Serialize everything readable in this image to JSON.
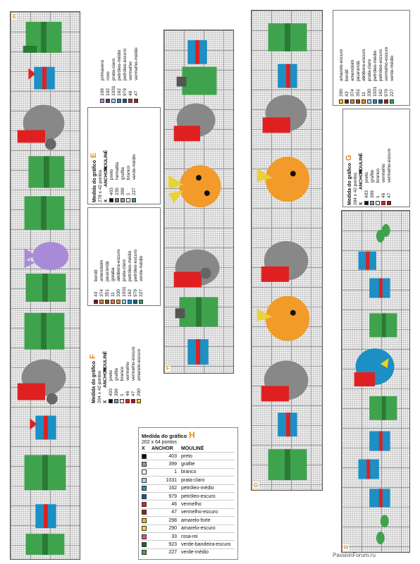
{
  "charts": {
    "E": {
      "letter": "E",
      "title": "Medida do gráfico",
      "size": "278 x 42 pontos",
      "header": {
        "x": "X",
        "anchor": "ANCHOR",
        "mouline": "MOULINÉ"
      },
      "rows": [
        {
          "anchor": "403",
          "name": "preto",
          "color": "#111111"
        },
        {
          "anchor": "235",
          "name": "hematita",
          "color": "#777777"
        },
        {
          "anchor": "399",
          "name": "grafite",
          "color": "#999999"
        },
        {
          "anchor": "1",
          "name": "branco",
          "color": "#ffffff"
        },
        {
          "anchor": "227",
          "name": "verde-médio",
          "color": "#3fa34d"
        }
      ],
      "extra": [
        {
          "anchor": "109",
          "name": "primavera",
          "color": "#b48fd8"
        },
        {
          "anchor": "102",
          "name": "roxo",
          "color": "#6a2b8a"
        },
        {
          "anchor": "1031",
          "name": "prata-claro",
          "color": "#9fd6f0"
        },
        {
          "anchor": "162",
          "name": "petróleo-médio",
          "color": "#1c8fc4"
        },
        {
          "anchor": "979",
          "name": "petróleo-escuro",
          "color": "#135c8a"
        },
        {
          "anchor": "46",
          "name": "vermelho",
          "color": "#e02020"
        },
        {
          "anchor": "47",
          "name": "vermelho-médio",
          "color": "#c01818"
        }
      ]
    },
    "F": {
      "letter": "F",
      "title": "Medida do gráfico",
      "size": "204 x 42 pontos",
      "header": {
        "x": "X",
        "anchor": "ANCHOR",
        "mouline": "MOULINÉ"
      },
      "rows": [
        {
          "anchor": "403",
          "name": "preto",
          "color": "#111111"
        },
        {
          "anchor": "399",
          "name": "grafite",
          "color": "#999999"
        },
        {
          "anchor": "1",
          "name": "branco",
          "color": "#ffffff"
        },
        {
          "anchor": "46",
          "name": "vermelho",
          "color": "#e02020"
        },
        {
          "anchor": "47",
          "name": "vermelho-escuro",
          "color": "#b01515"
        },
        {
          "anchor": "290",
          "name": "amarelo-escuro",
          "color": "#f2d21a"
        }
      ],
      "extra": [
        {
          "anchor": "43",
          "name": "bordô",
          "color": "#7a1020"
        },
        {
          "anchor": "374",
          "name": "amendoim",
          "color": "#c08a3a"
        },
        {
          "anchor": "351",
          "name": "jacarandá",
          "color": "#8a4a1a"
        },
        {
          "anchor": "11",
          "name": "goiaba",
          "color": "#f07060"
        },
        {
          "anchor": "330",
          "name": "abóbora-escuro",
          "color": "#f08a1a"
        },
        {
          "anchor": "1031",
          "name": "prata-claro",
          "color": "#9fd6f0"
        },
        {
          "anchor": "162",
          "name": "petróleo-médio",
          "color": "#1c8fc4"
        },
        {
          "anchor": "979",
          "name": "petróleo-escuro",
          "color": "#135c8a"
        },
        {
          "anchor": "227",
          "name": "verde-médio",
          "color": "#3fa34d"
        }
      ]
    },
    "G": {
      "letter": "G",
      "title": "Medida do gráfico",
      "size": "284 x 42 pontos",
      "header": {
        "x": "X",
        "anchor": "ANCHOR",
        "mouline": "MOULINÉ"
      },
      "rows": [
        {
          "anchor": "403",
          "name": "preto",
          "color": "#111111"
        },
        {
          "anchor": "399",
          "name": "grafite",
          "color": "#999999"
        },
        {
          "anchor": "1",
          "name": "branco",
          "color": "#ffffff"
        },
        {
          "anchor": "46",
          "name": "vermelho",
          "color": "#e02020"
        },
        {
          "anchor": "47",
          "name": "vermelho-escuro",
          "color": "#b01515"
        }
      ],
      "extra": [
        {
          "anchor": "290",
          "name": "amarelo-escuro",
          "color": "#f2d21a"
        },
        {
          "anchor": "43",
          "name": "bordô",
          "color": "#7a1020"
        },
        {
          "anchor": "374",
          "name": "amendoim",
          "color": "#c08a3a"
        },
        {
          "anchor": "351",
          "name": "jacarandá",
          "color": "#8a4a1a"
        },
        {
          "anchor": "11",
          "name": "abóbora-escuro",
          "color": "#f08a1a"
        },
        {
          "anchor": "330",
          "name": "prata-claro",
          "color": "#9fd6f0"
        },
        {
          "anchor": "1031",
          "name": "petróleo-médio",
          "color": "#1c8fc4"
        },
        {
          "anchor": "162",
          "name": "petróleo-escuro",
          "color": "#135c8a"
        },
        {
          "anchor": "979",
          "name": "vermelho-escuro",
          "color": "#b01515"
        },
        {
          "anchor": "227",
          "name": "verde-médio",
          "color": "#3fa34d"
        }
      ]
    },
    "H": {
      "letter": "H",
      "title": "Medida do gráfico",
      "size": "202 x 64 pontos",
      "header": {
        "x": "X",
        "anchor": "ANCHOR",
        "mouline": "MOULINÉ"
      },
      "rows": [
        {
          "anchor": "403",
          "name": "preto",
          "color": "#111111"
        },
        {
          "anchor": "399",
          "name": "grafite",
          "color": "#999999"
        },
        {
          "anchor": "1",
          "name": "branco",
          "color": "#ffffff"
        },
        {
          "anchor": "1031",
          "name": "prata-claro",
          "color": "#9fd6f0"
        },
        {
          "anchor": "162",
          "name": "petróleo-médio",
          "color": "#1c8fc4"
        },
        {
          "anchor": "979",
          "name": "petróleo-escuro",
          "color": "#135c8a"
        },
        {
          "anchor": "46",
          "name": "vermelho",
          "color": "#e02020"
        },
        {
          "anchor": "47",
          "name": "vermelho-escuro",
          "color": "#b01515"
        },
        {
          "anchor": "298",
          "name": "amarelo-forte",
          "color": "#f6b400"
        },
        {
          "anchor": "290",
          "name": "amarelo-escuro",
          "color": "#f2d21a"
        },
        {
          "anchor": "33",
          "name": "rosa-rei",
          "color": "#f04a7a"
        },
        {
          "anchor": "923",
          "name": "verde-bandeira-escuro",
          "color": "#146a2a"
        },
        {
          "anchor": "227",
          "name": "verde-médio",
          "color": "#3fa34d"
        }
      ]
    }
  },
  "watermark": "PassionForum.ru"
}
